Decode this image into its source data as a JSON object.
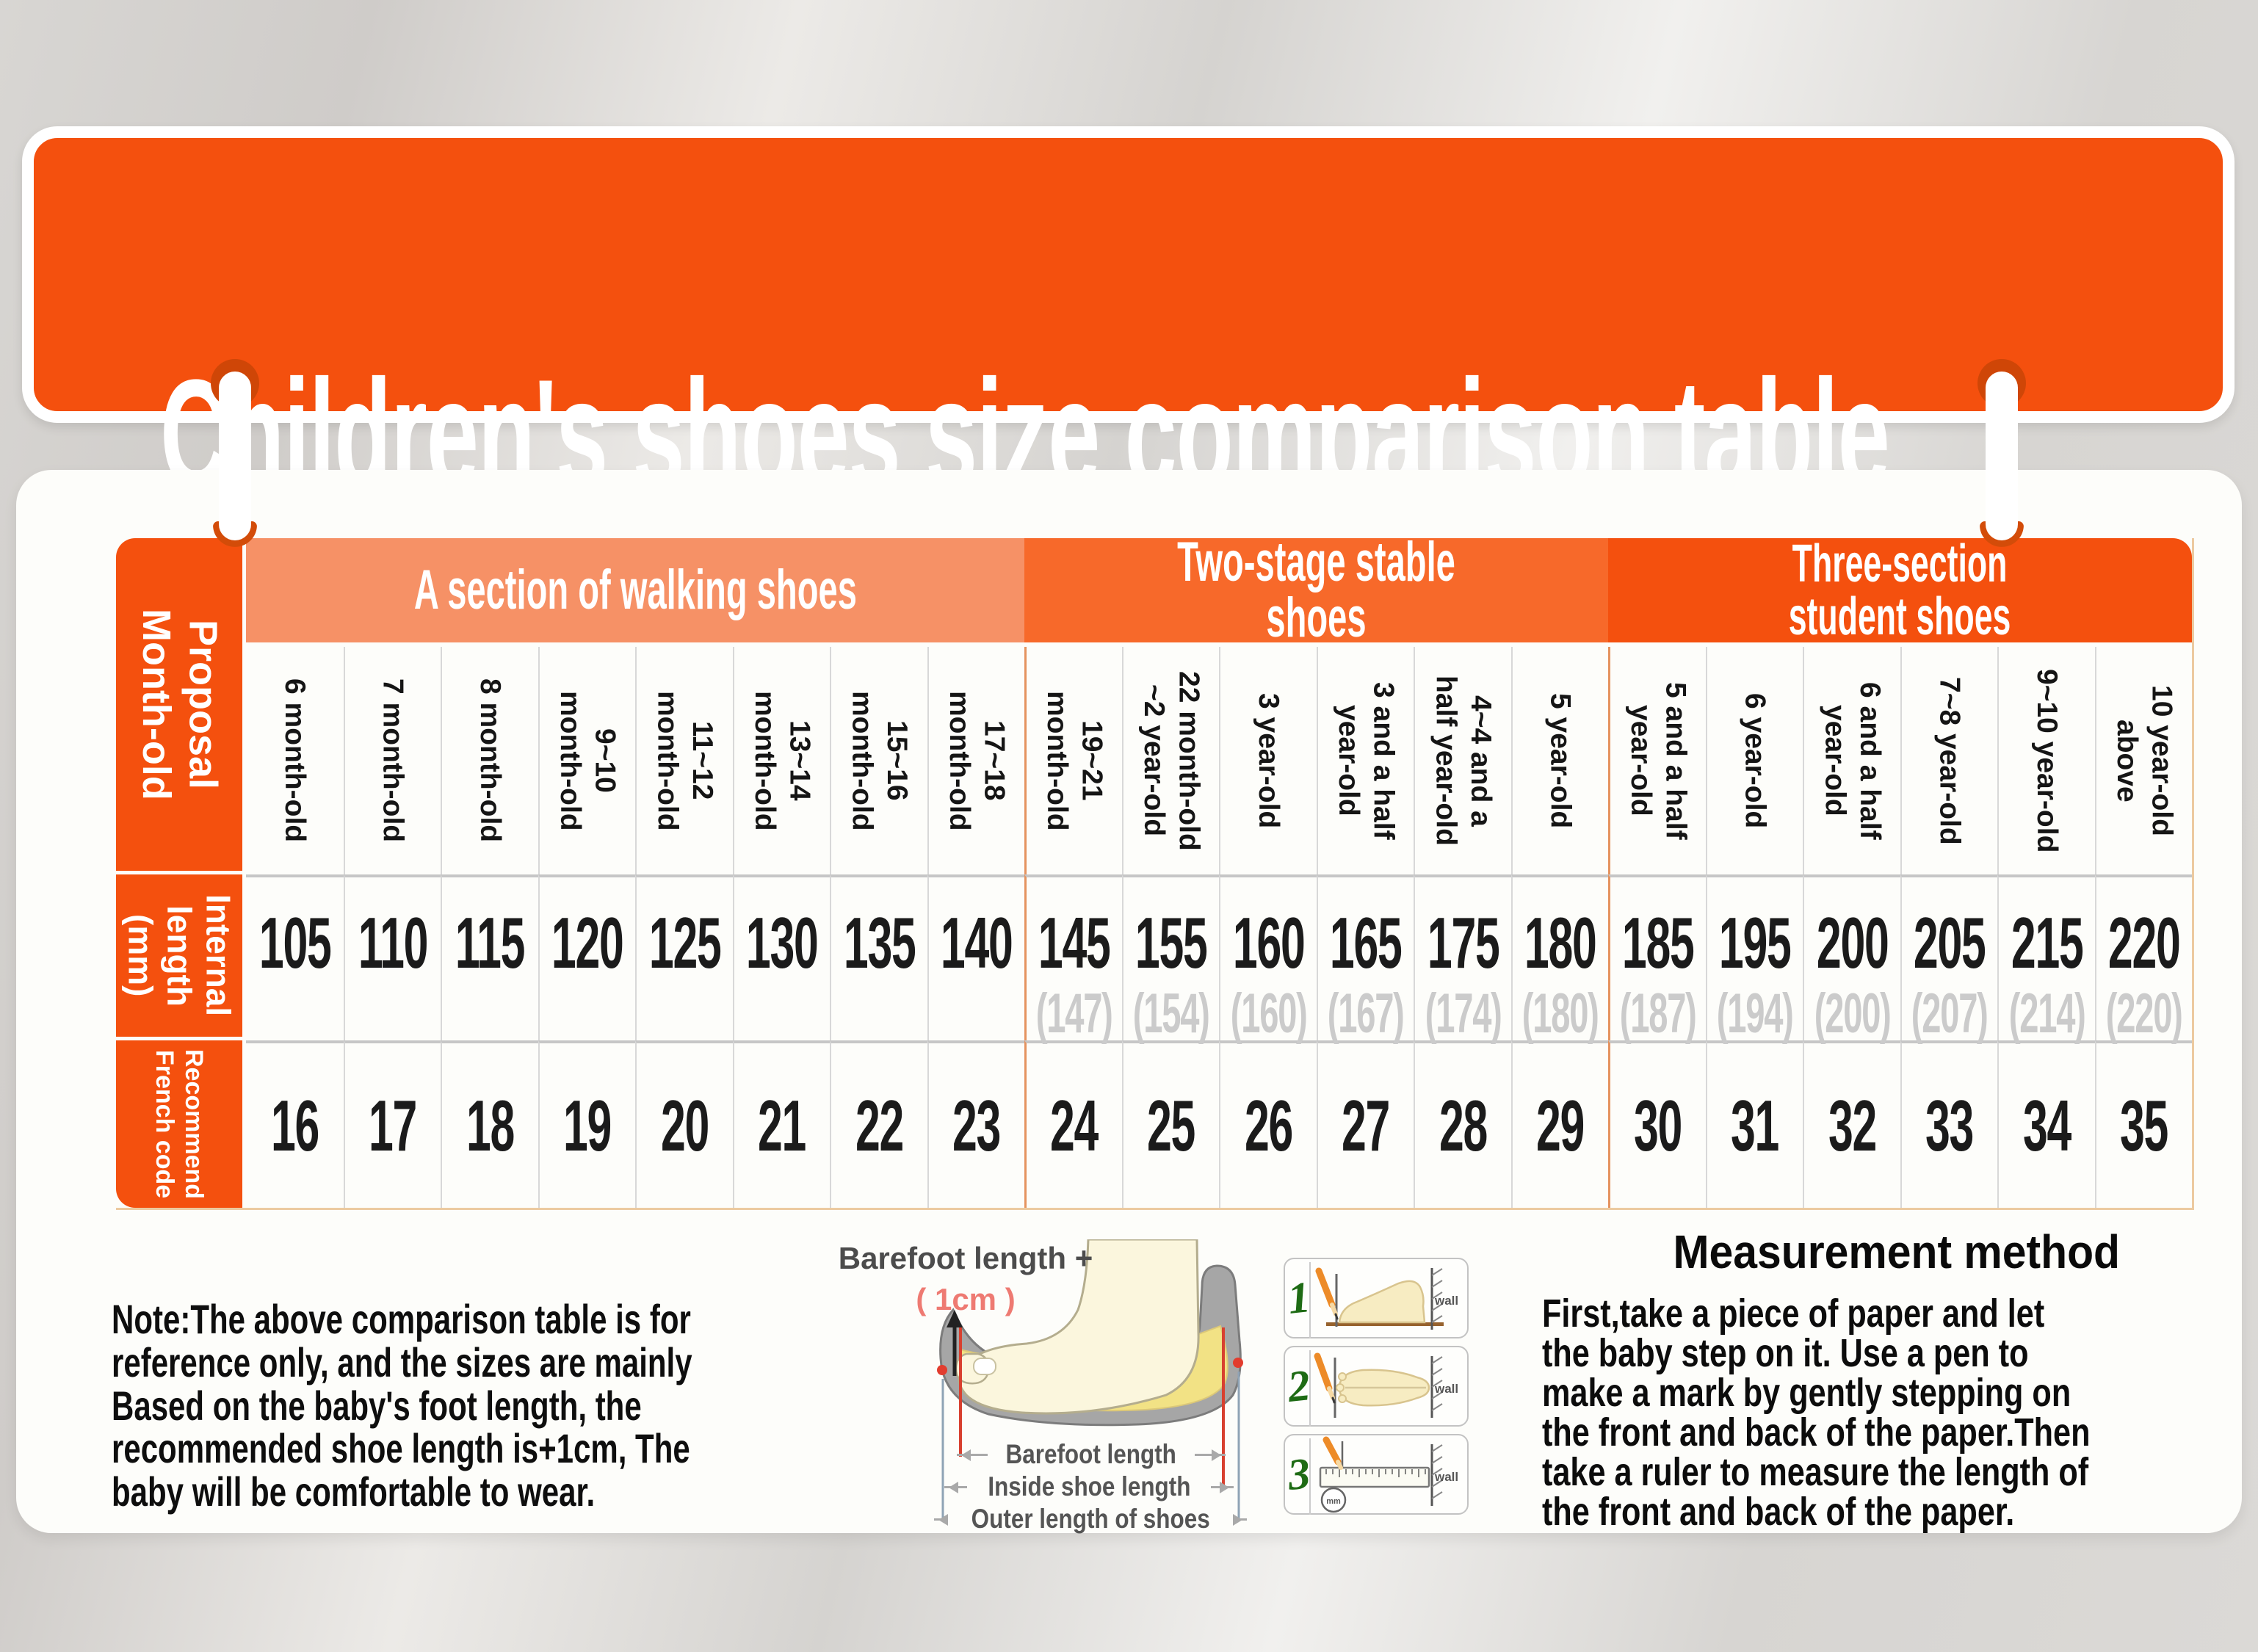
{
  "title": "Children's shoes size comparison table",
  "table": {
    "corner_label": "Proposal\nMonth-old",
    "row_labels": {
      "internal_length": "Internal\nlength\n(mm)",
      "french_code": "Recommend\nFrench code"
    },
    "sections": [
      {
        "label": "A section of walking shoes",
        "span": 8
      },
      {
        "label": "Two-stage stable shoes",
        "span": 6
      },
      {
        "label": "Three-section\nstudent shoes",
        "span": 6
      }
    ],
    "columns": [
      {
        "age": "6 month-old",
        "internal_length": "105",
        "alt_length": "",
        "french_code": "16"
      },
      {
        "age": "7 month-old",
        "internal_length": "110",
        "alt_length": "",
        "french_code": "17"
      },
      {
        "age": "8 month-old",
        "internal_length": "115",
        "alt_length": "",
        "french_code": "18"
      },
      {
        "age": "9~10\nmonth-old",
        "internal_length": "120",
        "alt_length": "",
        "french_code": "19"
      },
      {
        "age": "11~12\nmonth-old",
        "internal_length": "125",
        "alt_length": "",
        "french_code": "20"
      },
      {
        "age": "13~14\nmonth-old",
        "internal_length": "130",
        "alt_length": "",
        "french_code": "21"
      },
      {
        "age": "15~16\nmonth-old",
        "internal_length": "135",
        "alt_length": "",
        "french_code": "22"
      },
      {
        "age": "17~18\nmonth-old",
        "internal_length": "140",
        "alt_length": "",
        "french_code": "23"
      },
      {
        "age": "19~21\nmonth-old",
        "internal_length": "145",
        "alt_length": "(147)",
        "french_code": "24"
      },
      {
        "age": "22 month-old\n~2 year-old",
        "internal_length": "155",
        "alt_length": "(154)",
        "french_code": "25"
      },
      {
        "age": "3 year-old",
        "internal_length": "160",
        "alt_length": "(160)",
        "french_code": "26"
      },
      {
        "age": "3 and a half\nyear-old",
        "internal_length": "165",
        "alt_length": "(167)",
        "french_code": "27"
      },
      {
        "age": "4~4 and a\nhalf year-old",
        "internal_length": "175",
        "alt_length": "(174)",
        "french_code": "28"
      },
      {
        "age": "5 year-old",
        "internal_length": "180",
        "alt_length": "(180)",
        "french_code": "29"
      },
      {
        "age": "5 and a half\nyear-old",
        "internal_length": "185",
        "alt_length": "(187)",
        "french_code": "30"
      },
      {
        "age": "6 year-old",
        "internal_length": "195",
        "alt_length": "(194)",
        "french_code": "31"
      },
      {
        "age": "6 and a half\nyear-old",
        "internal_length": "200",
        "alt_length": "(200)",
        "french_code": "32"
      },
      {
        "age": "7~8 year-old",
        "internal_length": "205",
        "alt_length": "(207)",
        "french_code": "33"
      },
      {
        "age": "9~10 year-old",
        "internal_length": "215",
        "alt_length": "(214)",
        "french_code": "34"
      },
      {
        "age": "10 year-old\nabove",
        "internal_length": "220",
        "alt_length": "(220)",
        "french_code": "35"
      }
    ]
  },
  "note": "Note:The above comparison table is for\nreference only, and the sizes are mainly\nBased on the baby's foot length, the\nrecommended shoe length is+1cm, The\nbaby will be comfortable to wear.",
  "foot_diagram": {
    "top_label": "Barefoot length +",
    "top_label_cm": "( 1cm )",
    "measure_lines": [
      "Barefoot length",
      "Inside shoe length",
      "Outer length of shoes"
    ]
  },
  "steps": [
    {
      "num": "1",
      "wall_label": "wall"
    },
    {
      "num": "2",
      "wall_label": "wall"
    },
    {
      "num": "3",
      "wall_label": "wall",
      "circle_label": "mm"
    }
  ],
  "measurement": {
    "title": "Measurement method",
    "body": "First,take a piece of paper and let\nthe baby step on it. Use a pen to\nmake a mark by gently stepping on\nthe front and back of the paper.Then\ntake a ruler to measure the length of\nthe front and back of the paper."
  },
  "colors": {
    "accent_orange": "#f4500e",
    "section_walking": "#f69166",
    "section_two_stage": "#f7692a",
    "section_three": "#f4500e",
    "ring_dark": "#cf4607",
    "alt_value_gray": "#cbcbcb"
  }
}
